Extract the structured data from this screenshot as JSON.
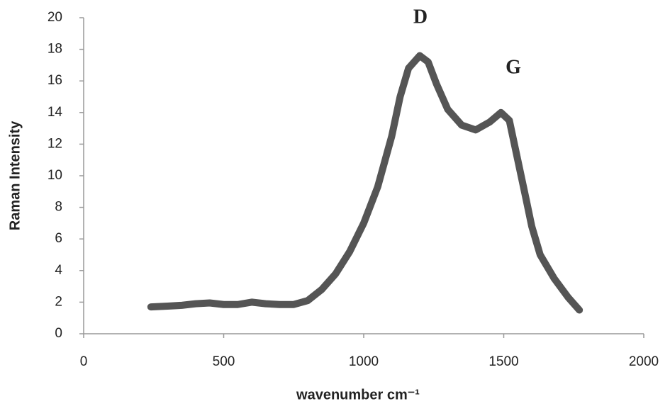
{
  "chart_data": {
    "type": "line",
    "x_label": "wavenumber cm⁻¹",
    "y_label": "Raman Intensity",
    "annotations": [
      "D",
      "G"
    ],
    "x": [
      240,
      300,
      350,
      400,
      450,
      500,
      550,
      600,
      650,
      700,
      750,
      800,
      850,
      900,
      950,
      1000,
      1050,
      1100,
      1130,
      1160,
      1200,
      1230,
      1260,
      1300,
      1350,
      1400,
      1450,
      1490,
      1520,
      1550,
      1580,
      1600,
      1630,
      1680,
      1730,
      1770
    ],
    "values": [
      1.7,
      1.75,
      1.8,
      1.9,
      1.95,
      1.85,
      1.85,
      2.0,
      1.9,
      1.85,
      1.85,
      2.1,
      2.8,
      3.8,
      5.2,
      7.0,
      9.3,
      12.5,
      15.0,
      16.8,
      17.6,
      17.2,
      15.8,
      14.2,
      13.2,
      12.9,
      13.4,
      14.0,
      13.5,
      11.0,
      8.5,
      6.8,
      5.0,
      3.5,
      2.3,
      1.5
    ],
    "color": "#555555",
    "xlim": [
      0,
      2000
    ],
    "xticks": [
      0,
      500,
      1000,
      1500,
      2000
    ],
    "ylim": [
      0,
      20
    ],
    "yticks": [
      0,
      2,
      4,
      6,
      8,
      10,
      12,
      14,
      16,
      18,
      20
    ],
    "grid": false
  }
}
